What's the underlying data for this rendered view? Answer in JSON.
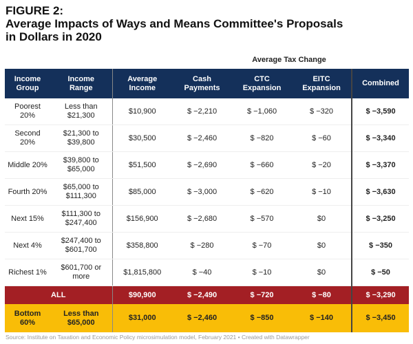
{
  "chart_data": {
    "type": "table",
    "title": "FIGURE 2:\nAverage Impacts of Ways and Means Committee's Proposals\nin Dollars in 2020",
    "column_group": "Average Tax Change",
    "columns": [
      "Income\nGroup",
      "Income\nRange",
      "Average\nIncome",
      "Cash\nPayments",
      "CTC\nExpansion",
      "EITC\nExpansion",
      "Combined"
    ],
    "rows": [
      [
        "Poorest\n20%",
        "Less than\n$21,300",
        "$10,900",
        "$ −2,210",
        "$ −1,060",
        "$ −320",
        "$ −3,590"
      ],
      [
        "Second\n20%",
        "$21,300 to\n$39,800",
        "$30,500",
        "$ −2,460",
        "$ −820",
        "$ −60",
        "$ −3,340"
      ],
      [
        "Middle 20%",
        "$39,800 to\n$65,000",
        "$51,500",
        "$ −2,690",
        "$ −660",
        "$ −20",
        "$ −3,370"
      ],
      [
        "Fourth 20%",
        "$65,000 to\n$111,300",
        "$85,000",
        "$ −3,000",
        "$ −620",
        "$ −10",
        "$ −3,630"
      ],
      [
        "Next 15%",
        "$111,300 to\n$247,400",
        "$156,900",
        "$ −2,680",
        "$ −570",
        "$0",
        "$ −3,250"
      ],
      [
        "Next 4%",
        "$247,400 to\n$601,700",
        "$358,800",
        "$ −280",
        "$ −70",
        "$0",
        "$ −350"
      ],
      [
        "Richest 1%",
        "$601,700 or\nmore",
        "$1,815,800",
        "$ −40",
        "$ −10",
        "$0",
        "$ −50"
      ]
    ],
    "all_row": [
      "ALL",
      "$90,900",
      "$ −2,490",
      "$ −720",
      "$ −80",
      "$ −3,290"
    ],
    "bottom_row": [
      "Bottom\n60%",
      "Less than\n$65,000",
      "$31,000",
      "$ −2,460",
      "$ −850",
      "$ −140",
      "$ −3,450"
    ],
    "colors": {
      "header": "#14305a",
      "all_row": "#a31f24",
      "bottom_row": "#f9bd07"
    }
  },
  "source": "Source: Institute on Taxation and Economic Policy microsimulation model, February 2021 • Created with Datawrapper"
}
